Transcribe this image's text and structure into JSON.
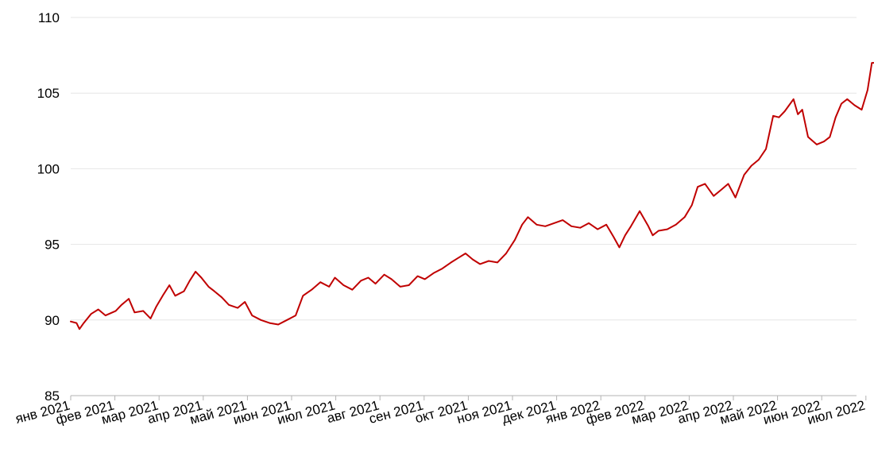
{
  "chart_data": {
    "type": "line",
    "title": "",
    "xlabel": "",
    "ylabel": "",
    "ylim": [
      85,
      110
    ],
    "yticks": [
      "85",
      "90",
      "95",
      "100",
      "105",
      "110"
    ],
    "xticks": [
      "янв 2021",
      "фев 2021",
      "мар 2021",
      "апр 2021",
      "май 2021",
      "июн 2021",
      "июл 2021",
      "авг 2021",
      "сен 2021",
      "окт 2021",
      "ноя 2021",
      "дек 2021",
      "янв 2022",
      "фев 2022",
      "мар 2022",
      "апр 2022",
      "май 2022",
      "июн 2022",
      "июл 2022"
    ],
    "grid": true,
    "legend": "none",
    "colors": {
      "line": "#c00000",
      "grid": "#e6e6e6",
      "axis": "#b3b3b3",
      "text": "#000000"
    },
    "series": [
      {
        "x": [
          "2021-01-01",
          "2021-01-05",
          "2021-01-07",
          "2021-01-10",
          "2021-01-15",
          "2021-01-20",
          "2021-01-25",
          "2021-02-01",
          "2021-02-05",
          "2021-02-10",
          "2021-02-14",
          "2021-02-20",
          "2021-02-25",
          "2021-03-01",
          "2021-03-06",
          "2021-03-10",
          "2021-03-14",
          "2021-03-20",
          "2021-03-24",
          "2021-03-28",
          "2021-04-01",
          "2021-04-06",
          "2021-04-10",
          "2021-04-15",
          "2021-04-20",
          "2021-04-26",
          "2021-05-01",
          "2021-05-06",
          "2021-05-12",
          "2021-05-18",
          "2021-05-24",
          "2021-05-30",
          "2021-06-05",
          "2021-06-10",
          "2021-06-16",
          "2021-06-22",
          "2021-06-28",
          "2021-07-02",
          "2021-07-08",
          "2021-07-14",
          "2021-07-20",
          "2021-07-25",
          "2021-07-30",
          "2021-08-05",
          "2021-08-10",
          "2021-08-16",
          "2021-08-22",
          "2021-08-28",
          "2021-09-02",
          "2021-09-08",
          "2021-09-14",
          "2021-09-20",
          "2021-09-25",
          "2021-09-30",
          "2021-10-05",
          "2021-10-10",
          "2021-10-16",
          "2021-10-22",
          "2021-10-28",
          "2021-11-03",
          "2021-11-08",
          "2021-11-12",
          "2021-11-18",
          "2021-11-24",
          "2021-11-30",
          "2021-12-06",
          "2021-12-12",
          "2021-12-18",
          "2021-12-24",
          "2021-12-30",
          "2022-01-05",
          "2022-01-10",
          "2022-01-14",
          "2022-01-18",
          "2022-01-22",
          "2022-01-28",
          "2022-02-03",
          "2022-02-06",
          "2022-02-10",
          "2022-02-16",
          "2022-02-22",
          "2022-02-28",
          "2022-03-05",
          "2022-03-09",
          "2022-03-14",
          "2022-03-20",
          "2022-03-25",
          "2022-03-30",
          "2022-04-04",
          "2022-04-10",
          "2022-04-15",
          "2022-04-20",
          "2022-04-25",
          "2022-04-30",
          "2022-05-04",
          "2022-05-08",
          "2022-05-14",
          "2022-05-17",
          "2022-05-20",
          "2022-05-24",
          "2022-05-30",
          "2022-06-04",
          "2022-06-08",
          "2022-06-12",
          "2022-06-16",
          "2022-06-20",
          "2022-06-25",
          "2022-06-30",
          "2022-07-04",
          "2022-07-07",
          "2022-07-11",
          "2022-07-14"
        ],
        "values": [
          89.9,
          89.8,
          89.4,
          89.8,
          90.4,
          90.7,
          90.3,
          90.6,
          91.0,
          91.4,
          90.5,
          90.6,
          90.1,
          90.9,
          91.7,
          92.3,
          91.6,
          91.9,
          92.6,
          93.2,
          92.8,
          92.2,
          91.9,
          91.5,
          91.0,
          90.8,
          91.2,
          90.3,
          90.0,
          89.8,
          89.7,
          90.0,
          90.3,
          91.6,
          92.0,
          92.5,
          92.2,
          92.8,
          92.3,
          92.0,
          92.6,
          92.8,
          92.4,
          93.0,
          92.7,
          92.2,
          92.3,
          92.9,
          92.7,
          93.1,
          93.4,
          93.8,
          94.1,
          94.4,
          94.0,
          93.7,
          93.9,
          93.8,
          94.4,
          95.3,
          96.3,
          96.8,
          96.3,
          96.2,
          96.4,
          96.6,
          96.2,
          96.1,
          96.4,
          96.0,
          96.3,
          95.5,
          94.8,
          95.6,
          96.2,
          97.2,
          96.2,
          95.6,
          95.9,
          96.0,
          96.3,
          96.8,
          97.6,
          98.8,
          99.0,
          98.2,
          98.6,
          99.0,
          98.1,
          99.6,
          100.2,
          100.6,
          101.3,
          103.5,
          103.4,
          103.8,
          104.6,
          103.6,
          103.9,
          102.1,
          101.6,
          101.8,
          102.1,
          103.4,
          104.3,
          104.6,
          104.2,
          103.9,
          105.2,
          107.0,
          107.0,
          106.9
        ]
      }
    ]
  }
}
